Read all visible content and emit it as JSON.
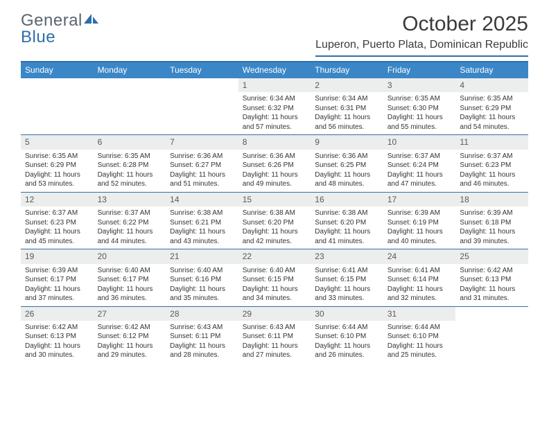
{
  "brand": {
    "part1": "General",
    "part2": "Blue"
  },
  "title": "October 2025",
  "location": "Luperon, Puerto Plata, Dominican Republic",
  "colors": {
    "header_bg": "#3b86c7",
    "accent": "#2f6fa8",
    "daynum_bg": "#eceded",
    "text": "#333333",
    "logo_gray": "#5a6570"
  },
  "weekdays": [
    "Sunday",
    "Monday",
    "Tuesday",
    "Wednesday",
    "Thursday",
    "Friday",
    "Saturday"
  ],
  "first_weekday_index": 3,
  "days": [
    {
      "n": 1,
      "sunrise": "6:34 AM",
      "sunset": "6:32 PM",
      "dl": "11 hours and 57 minutes."
    },
    {
      "n": 2,
      "sunrise": "6:34 AM",
      "sunset": "6:31 PM",
      "dl": "11 hours and 56 minutes."
    },
    {
      "n": 3,
      "sunrise": "6:35 AM",
      "sunset": "6:30 PM",
      "dl": "11 hours and 55 minutes."
    },
    {
      "n": 4,
      "sunrise": "6:35 AM",
      "sunset": "6:29 PM",
      "dl": "11 hours and 54 minutes."
    },
    {
      "n": 5,
      "sunrise": "6:35 AM",
      "sunset": "6:29 PM",
      "dl": "11 hours and 53 minutes."
    },
    {
      "n": 6,
      "sunrise": "6:35 AM",
      "sunset": "6:28 PM",
      "dl": "11 hours and 52 minutes."
    },
    {
      "n": 7,
      "sunrise": "6:36 AM",
      "sunset": "6:27 PM",
      "dl": "11 hours and 51 minutes."
    },
    {
      "n": 8,
      "sunrise": "6:36 AM",
      "sunset": "6:26 PM",
      "dl": "11 hours and 49 minutes."
    },
    {
      "n": 9,
      "sunrise": "6:36 AM",
      "sunset": "6:25 PM",
      "dl": "11 hours and 48 minutes."
    },
    {
      "n": 10,
      "sunrise": "6:37 AM",
      "sunset": "6:24 PM",
      "dl": "11 hours and 47 minutes."
    },
    {
      "n": 11,
      "sunrise": "6:37 AM",
      "sunset": "6:23 PM",
      "dl": "11 hours and 46 minutes."
    },
    {
      "n": 12,
      "sunrise": "6:37 AM",
      "sunset": "6:23 PM",
      "dl": "11 hours and 45 minutes."
    },
    {
      "n": 13,
      "sunrise": "6:37 AM",
      "sunset": "6:22 PM",
      "dl": "11 hours and 44 minutes."
    },
    {
      "n": 14,
      "sunrise": "6:38 AM",
      "sunset": "6:21 PM",
      "dl": "11 hours and 43 minutes."
    },
    {
      "n": 15,
      "sunrise": "6:38 AM",
      "sunset": "6:20 PM",
      "dl": "11 hours and 42 minutes."
    },
    {
      "n": 16,
      "sunrise": "6:38 AM",
      "sunset": "6:20 PM",
      "dl": "11 hours and 41 minutes."
    },
    {
      "n": 17,
      "sunrise": "6:39 AM",
      "sunset": "6:19 PM",
      "dl": "11 hours and 40 minutes."
    },
    {
      "n": 18,
      "sunrise": "6:39 AM",
      "sunset": "6:18 PM",
      "dl": "11 hours and 39 minutes."
    },
    {
      "n": 19,
      "sunrise": "6:39 AM",
      "sunset": "6:17 PM",
      "dl": "11 hours and 37 minutes."
    },
    {
      "n": 20,
      "sunrise": "6:40 AM",
      "sunset": "6:17 PM",
      "dl": "11 hours and 36 minutes."
    },
    {
      "n": 21,
      "sunrise": "6:40 AM",
      "sunset": "6:16 PM",
      "dl": "11 hours and 35 minutes."
    },
    {
      "n": 22,
      "sunrise": "6:40 AM",
      "sunset": "6:15 PM",
      "dl": "11 hours and 34 minutes."
    },
    {
      "n": 23,
      "sunrise": "6:41 AM",
      "sunset": "6:15 PM",
      "dl": "11 hours and 33 minutes."
    },
    {
      "n": 24,
      "sunrise": "6:41 AM",
      "sunset": "6:14 PM",
      "dl": "11 hours and 32 minutes."
    },
    {
      "n": 25,
      "sunrise": "6:42 AM",
      "sunset": "6:13 PM",
      "dl": "11 hours and 31 minutes."
    },
    {
      "n": 26,
      "sunrise": "6:42 AM",
      "sunset": "6:13 PM",
      "dl": "11 hours and 30 minutes."
    },
    {
      "n": 27,
      "sunrise": "6:42 AM",
      "sunset": "6:12 PM",
      "dl": "11 hours and 29 minutes."
    },
    {
      "n": 28,
      "sunrise": "6:43 AM",
      "sunset": "6:11 PM",
      "dl": "11 hours and 28 minutes."
    },
    {
      "n": 29,
      "sunrise": "6:43 AM",
      "sunset": "6:11 PM",
      "dl": "11 hours and 27 minutes."
    },
    {
      "n": 30,
      "sunrise": "6:44 AM",
      "sunset": "6:10 PM",
      "dl": "11 hours and 26 minutes."
    },
    {
      "n": 31,
      "sunrise": "6:44 AM",
      "sunset": "6:10 PM",
      "dl": "11 hours and 25 minutes."
    }
  ],
  "labels": {
    "sunrise": "Sunrise:",
    "sunset": "Sunset:",
    "daylight": "Daylight:"
  }
}
